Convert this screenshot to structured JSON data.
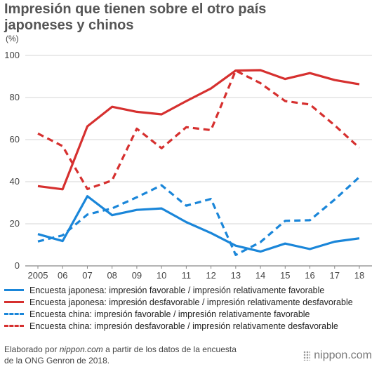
{
  "title_line1": "Impresión que tienen sobre el otro país",
  "title_line2": "japoneses y chinos",
  "unit": "(%)",
  "chart_data": {
    "type": "line",
    "categories": [
      "2005",
      "06",
      "07",
      "08",
      "09",
      "10",
      "11",
      "12",
      "13",
      "14",
      "15",
      "16",
      "17",
      "18"
    ],
    "ylim": [
      0,
      100
    ],
    "yticks": [
      0,
      20,
      40,
      60,
      80,
      100
    ],
    "grid": true,
    "series": [
      {
        "name": "Encuesta japonesa: impresión favorable / impresión relativamente favorable",
        "color": "#1a86d9",
        "dashed": false,
        "values": [
          15.1,
          11.8,
          33.1,
          24.1,
          26.6,
          27.3,
          20.8,
          15.6,
          9.6,
          6.8,
          10.6,
          8.0,
          11.5,
          13.1
        ]
      },
      {
        "name": "Encuesta japonesa: impresión desfavorable / impresión relativamente desfavorable",
        "color": "#d6302f",
        "dashed": false,
        "values": [
          37.9,
          36.4,
          66.3,
          75.6,
          73.2,
          72.0,
          78.3,
          84.3,
          92.8,
          93.0,
          88.8,
          91.6,
          88.3,
          86.3
        ]
      },
      {
        "name": "Encuesta china: impresión favorable / impresión relativamente favorable",
        "color": "#1a86d9",
        "dashed": true,
        "values": [
          11.6,
          14.5,
          24.4,
          27.3,
          32.6,
          38.3,
          28.6,
          31.8,
          5.2,
          11.3,
          21.4,
          21.7,
          31.5,
          42.2
        ]
      },
      {
        "name": "Encuesta china: impresión desfavorable / impresión relativamente desfavorable",
        "color": "#d6302f",
        "dashed": true,
        "values": [
          62.9,
          56.9,
          36.5,
          40.6,
          65.2,
          55.9,
          65.9,
          64.5,
          92.8,
          86.8,
          78.3,
          76.7,
          66.8,
          56.1
        ]
      }
    ]
  },
  "footer": {
    "line1_prefix": "Elaborado por ",
    "line1_source": "nippon.com",
    "line1_suffix": " a partir de los datos de la encuesta",
    "line2": "de la ONG Genron de 2018."
  },
  "logo_text": "nippon.com"
}
